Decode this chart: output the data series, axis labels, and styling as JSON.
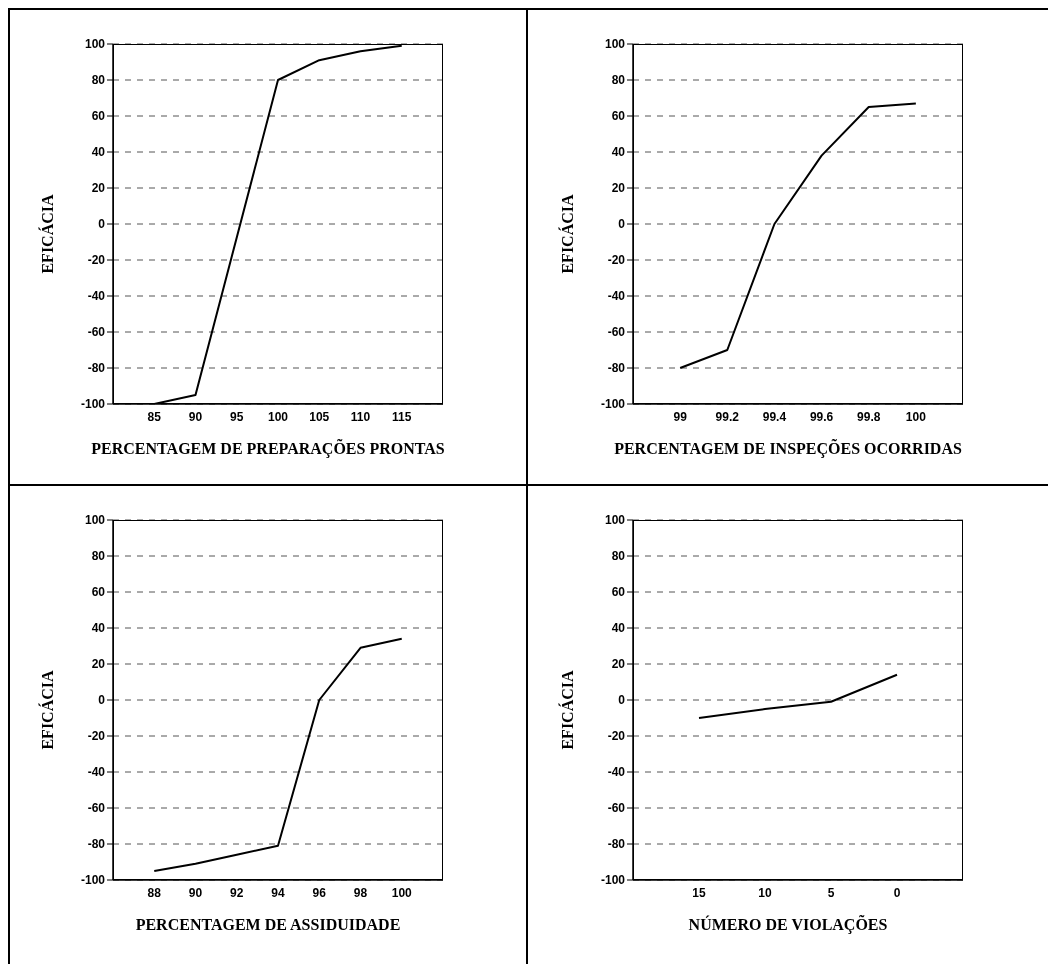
{
  "chart_data": [
    {
      "type": "line",
      "xlabel": "PERCENTAGEM DE PREPARAÇÕES PRONTAS",
      "ylabel": "EFICÁCIA",
      "color": "#000000",
      "x": [
        85,
        90,
        100,
        105,
        110,
        115
      ],
      "values": [
        -100,
        -95,
        80,
        91,
        96,
        99
      ],
      "xlim": [
        80,
        120
      ],
      "xticks": [
        85,
        90,
        95,
        100,
        105,
        110,
        115
      ],
      "ylim": [
        -100,
        100
      ],
      "yticks": [
        -100,
        -80,
        -60,
        -40,
        -20,
        0,
        20,
        40,
        60,
        80,
        100
      ],
      "grid": "y"
    },
    {
      "type": "line",
      "xlabel": "PERCENTAGEM DE INSPEÇÕES OCORRIDAS",
      "ylabel": "EFICÁCIA",
      "color": "#000000",
      "x": [
        99,
        99.2,
        99.4,
        99.6,
        99.8,
        100
      ],
      "values": [
        -80,
        -70,
        0,
        38,
        65,
        67
      ],
      "xlim": [
        98.8,
        100.2
      ],
      "xticks": [
        99,
        99.2,
        99.4,
        99.6,
        99.8,
        100
      ],
      "ylim": [
        -100,
        100
      ],
      "yticks": [
        -100,
        -80,
        -60,
        -40,
        -20,
        0,
        20,
        40,
        60,
        80,
        100
      ],
      "grid": "y"
    },
    {
      "type": "line",
      "xlabel": "PERCENTAGEM DE ASSIDUIDADE",
      "ylabel": "EFICÁCIA",
      "color": "#000000",
      "x": [
        88,
        90,
        92,
        94,
        96,
        98,
        100
      ],
      "values": [
        -95,
        -91,
        -86,
        -81,
        0,
        29,
        34
      ],
      "xlim": [
        86,
        102
      ],
      "xticks": [
        88,
        90,
        92,
        94,
        96,
        98,
        100
      ],
      "ylim": [
        -100,
        100
      ],
      "yticks": [
        -100,
        -80,
        -60,
        -40,
        -20,
        0,
        20,
        40,
        60,
        80,
        100
      ],
      "grid": "y"
    },
    {
      "type": "line",
      "xlabel": "NÚMERO DE VIOLAÇÕES",
      "ylabel": "EFICÁCIA",
      "color": "#000000",
      "x": [
        15,
        10,
        5,
        0
      ],
      "values": [
        -10,
        -5,
        -1,
        14
      ],
      "xlim": [
        20,
        -5
      ],
      "xticks": [
        15,
        10,
        5,
        0
      ],
      "ylim": [
        -100,
        100
      ],
      "yticks": [
        -100,
        -80,
        -60,
        -40,
        -20,
        0,
        20,
        40,
        60,
        80,
        100
      ],
      "grid": "y"
    }
  ]
}
